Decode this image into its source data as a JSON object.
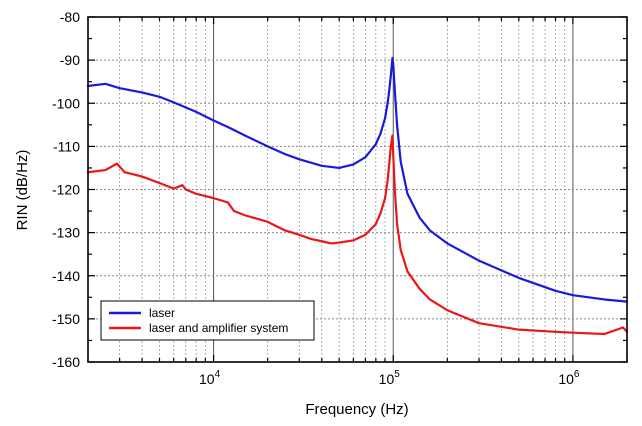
{
  "chart_data": {
    "type": "line",
    "title": "",
    "xlabel": "Frequency (Hz)",
    "ylabel": "RIN (dB/Hz)",
    "x_scale": "log",
    "xlim": [
      2000,
      2000000
    ],
    "ylim": [
      -160,
      -80
    ],
    "xticks": [
      {
        "value": 10000,
        "base": "10",
        "exp": "4"
      },
      {
        "value": 100000,
        "base": "10",
        "exp": "5"
      },
      {
        "value": 1000000,
        "base": "10",
        "exp": "6"
      }
    ],
    "yticks": [
      {
        "value": -80,
        "label": "-80"
      },
      {
        "value": -90,
        "label": "-90"
      },
      {
        "value": -100,
        "label": "-100"
      },
      {
        "value": -110,
        "label": "-110"
      },
      {
        "value": -120,
        "label": "-120"
      },
      {
        "value": -130,
        "label": "-130"
      },
      {
        "value": -140,
        "label": "-140"
      },
      {
        "value": -150,
        "label": "-150"
      },
      {
        "value": -160,
        "label": "-160"
      }
    ],
    "grid": true,
    "legend_position": "bottom-left",
    "series": [
      {
        "name": "laser",
        "color": "#1a1adb",
        "x": [
          2000,
          2500,
          3000,
          4000,
          5000,
          6000,
          8000,
          10000,
          12000,
          15000,
          20000,
          25000,
          30000,
          40000,
          50000,
          60000,
          70000,
          80000,
          85000,
          90000,
          93000,
          95000,
          97000,
          99000,
          100000,
          102000,
          105000,
          110000,
          120000,
          140000,
          160000,
          200000,
          300000,
          500000,
          800000,
          1000000,
          1500000,
          2000000
        ],
        "y": [
          -96,
          -95.5,
          -96.5,
          -97.5,
          -98.5,
          -99.8,
          -102,
          -104,
          -105.5,
          -107.5,
          -110,
          -111.8,
          -113,
          -114.5,
          -115,
          -114.2,
          -112.5,
          -109.5,
          -107,
          -103.5,
          -100,
          -97,
          -93.5,
          -89.5,
          -91,
          -97,
          -105,
          -113.5,
          -121,
          -126.5,
          -129.5,
          -132.5,
          -136.5,
          -140.5,
          -143.5,
          -144.5,
          -145.5,
          -146
        ]
      },
      {
        "name": "laser and amplifier system",
        "color": "#e81818",
        "x": [
          2000,
          2500,
          2900,
          3200,
          3600,
          4000,
          5000,
          6000,
          6700,
          7000,
          8000,
          10000,
          12000,
          13000,
          15000,
          20000,
          25000,
          30000,
          35000,
          40000,
          45000,
          50000,
          60000,
          70000,
          80000,
          85000,
          90000,
          93000,
          95000,
          97000,
          99000,
          100000,
          102000,
          105000,
          110000,
          120000,
          140000,
          160000,
          200000,
          300000,
          500000,
          800000,
          1000000,
          1500000,
          1900000,
          2000000
        ],
        "y": [
          -116,
          -115.5,
          -114,
          -116,
          -116.5,
          -117,
          -118.5,
          -119.8,
          -119,
          -120,
          -121,
          -122,
          -123,
          -125,
          -126,
          -127.5,
          -129.5,
          -130.5,
          -131.5,
          -132,
          -132.5,
          -132.3,
          -131.8,
          -130.5,
          -128,
          -125.5,
          -122,
          -118,
          -114,
          -110,
          -107.5,
          -112,
          -120,
          -128,
          -134,
          -139,
          -143,
          -145.5,
          -148,
          -151,
          -152.5,
          -153,
          -153.2,
          -153.5,
          -152,
          -153
        ]
      }
    ]
  }
}
